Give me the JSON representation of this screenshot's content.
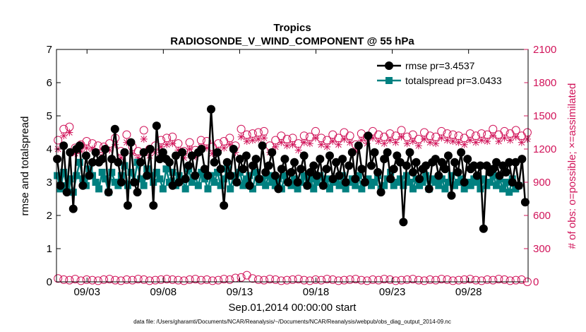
{
  "chart_data": {
    "type": "line",
    "title": "Tropics",
    "subtitle": "RADIOSONDE_V_WIND_COMPONENT @ 55 hPa",
    "xlabel": "Sep.01,2014 00:00:00 start",
    "ylabel_left": "rmse and totalspread",
    "ylabel_right": "# of obs: o=possible; ×=assimilated",
    "footer": "data file: /Users/gharamti/Documents/NCAR/Reanalysis/~/Documents/NCAR/Reanalysis/webpub/obs_diag_output_2014-09.nc",
    "xlim": [
      1,
      31.9
    ],
    "ylim_left": [
      0,
      7
    ],
    "ylim_right": [
      0,
      2100
    ],
    "x_ticks": [
      3,
      8,
      13,
      18,
      23,
      28
    ],
    "x_tick_labels": [
      "09/03",
      "09/08",
      "09/13",
      "09/18",
      "09/23",
      "09/28"
    ],
    "y_ticks_left": [
      0,
      1,
      2,
      3,
      4,
      5,
      6,
      7
    ],
    "y_ticks_right": [
      0,
      300,
      600,
      900,
      1200,
      1500,
      1800,
      2100
    ],
    "legend_position": "top-right",
    "colors": {
      "rmse": "#000000",
      "totalspread": "#008080",
      "obs": "#d1145a"
    },
    "series": [
      {
        "name": "rmse",
        "legend": "rmse pr=3.4537",
        "values": [
          3.7,
          2.9,
          4.1,
          2.7,
          3.9,
          2.2,
          4.0,
          4.1,
          2.9,
          3.8,
          3.2,
          3.6,
          3.9,
          3.6,
          3.7,
          4.0,
          2.7,
          3.7,
          4.6,
          3.6,
          3.0,
          3.9,
          2.3,
          4.2,
          3.0,
          2.7,
          3.6,
          3.9,
          3.2,
          4.0,
          2.3,
          4.7,
          3.7,
          3.9,
          3.7,
          3.6,
          2.9,
          3.8,
          3.0,
          3.9,
          3.1,
          3.5,
          3.8,
          3.2,
          3.9,
          4.0,
          3.4,
          3.2,
          5.2,
          3.6,
          3.9,
          3.4,
          2.3,
          3.6,
          3.2,
          4.0,
          3.0,
          3.7,
          3.4,
          3.8,
          2.9,
          3.5,
          3.7,
          3.1,
          4.1,
          3.3,
          3.5,
          3.9,
          3.2,
          2.8,
          3.4,
          3.7,
          3.0,
          3.3,
          3.6,
          3.0,
          3.4,
          3.8,
          2.9,
          3.3,
          3.5,
          3.2,
          3.7,
          2.9,
          3.4,
          3.8,
          3.1,
          3.6,
          3.2,
          3.7,
          3.0,
          3.5,
          3.9,
          3.1,
          4.1,
          3.4,
          3.0,
          4.4,
          3.5,
          3.9,
          3.3,
          2.7,
          3.7,
          3.9,
          3.1,
          3.4,
          3.8,
          3.6,
          1.8,
          3.5,
          3.9,
          3.3,
          3.6,
          3.1,
          3.4,
          3.5,
          2.8,
          3.6,
          3.7,
          3.2,
          3.6,
          3.4,
          3.8,
          2.6,
          3.6,
          3.3,
          3.9,
          3.0,
          3.7,
          3.4,
          3.5,
          3.2,
          3.5,
          1.6,
          3.5,
          3.3,
          3.4,
          3.6,
          3.2,
          3.5,
          3.3,
          3.6,
          3.0,
          3.6,
          2.9,
          3.7,
          2.4
        ],
        "x_start": 1.05,
        "x_step": 0.21
      },
      {
        "name": "totalspread",
        "legend": "totalspread pr=3.0433",
        "values": [
          3.2,
          2.8,
          3.3,
          2.9,
          3.1,
          2.7,
          3.2,
          3.6,
          3.1,
          2.9,
          3.4,
          3.2,
          3.0,
          2.8,
          3.3,
          3.1,
          2.7,
          3.3,
          3.0,
          2.9,
          3.2,
          3.5,
          2.9,
          3.3,
          3.0,
          3.6,
          3.1,
          2.9,
          3.4,
          3.2,
          3.0,
          3.3,
          3.1,
          2.8,
          3.4,
          3.0,
          3.3,
          2.9,
          3.2,
          3.1,
          2.8,
          3.4,
          3.0,
          3.2,
          2.9,
          3.3,
          3.1,
          2.8,
          3.2,
          3.0,
          3.3,
          2.9,
          3.1,
          3.4,
          2.8,
          3.2,
          3.0,
          3.3,
          2.9,
          3.1,
          3.2,
          2.8,
          3.3,
          3.0,
          3.1,
          2.9,
          3.2,
          3.0,
          2.9,
          3.1,
          2.8,
          3.2,
          3.0,
          2.9,
          3.1,
          2.8,
          3.0,
          3.2,
          2.9,
          3.1,
          2.8,
          3.0,
          3.2,
          2.9,
          3.1,
          2.8,
          3.0,
          3.1,
          2.9,
          3.2,
          2.8,
          3.0,
          3.1,
          2.9,
          3.2,
          2.8,
          3.0,
          3.1,
          2.9,
          3.0,
          3.2,
          2.8,
          2.9,
          3.1,
          3.3,
          2.9,
          3.0,
          3.1,
          2.9,
          3.2,
          3.0,
          2.8,
          3.1,
          2.9,
          3.0,
          3.2,
          2.8,
          3.1,
          3.0,
          2.9,
          3.1,
          2.8,
          3.0,
          3.2,
          2.9,
          3.0,
          3.1,
          2.8,
          3.0,
          2.9,
          3.1,
          3.0,
          2.8,
          3.1,
          2.9,
          3.0,
          3.2,
          2.9,
          3.1,
          2.8,
          3.0,
          2.7,
          3.1,
          2.8,
          2.9
        ],
        "x_start": 1.05,
        "x_step": 0.21
      },
      {
        "name": "obs possible (high)",
        "marker": "circle",
        "values": [
          1280,
          1380,
          1400,
          1210,
          1240,
          1270,
          1250,
          1230,
          1220,
          1250,
          1300,
          1180,
          1330,
          1220,
          1180,
          1370,
          1200,
          1230,
          1280,
          1300,
          1310,
          1250,
          1180,
          1260,
          1190,
          1280,
          1270,
          1220,
          1250,
          1270,
          1300,
          1230,
          1380,
          1330,
          1340,
          1350,
          1360,
          1230,
          1280,
          1320,
          1290,
          1300,
          1250,
          1320,
          1310,
          1360,
          1300,
          1280,
          1330,
          1300,
          1350,
          1320,
          1240,
          1340,
          1310,
          1360,
          1330,
          1310,
          1340,
          1320,
          1370,
          1310,
          1330,
          1290,
          1350,
          1320,
          1310,
          1360,
          1340,
          1330,
          1320,
          1300,
          1340,
          1320,
          1340,
          1330,
          1380,
          1330,
          1360,
          1340,
          1370,
          1320,
          1350
        ],
        "x_start": 1.1,
        "x_step": 0.375
      },
      {
        "name": "obs assimilated (high)",
        "marker": "asterisk",
        "values": [
          1200,
          1320,
          1350,
          1160,
          1180,
          1210,
          1200,
          1170,
          1170,
          1190,
          1240,
          1120,
          1260,
          1160,
          1120,
          1290,
          1140,
          1170,
          1220,
          1240,
          1250,
          1190,
          1120,
          1200,
          1130,
          1220,
          1210,
          1160,
          1190,
          1210,
          1240,
          1170,
          1310,
          1270,
          1280,
          1290,
          1300,
          1170,
          1220,
          1260,
          1230,
          1240,
          1190,
          1260,
          1250,
          1300,
          1240,
          1220,
          1270,
          1240,
          1290,
          1260,
          1180,
          1280,
          1250,
          1300,
          1270,
          1250,
          1280,
          1260,
          1310,
          1250,
          1270,
          1230,
          1290,
          1260,
          1250,
          1300,
          1280,
          1270,
          1260,
          1240,
          1280,
          1260,
          1280,
          1270,
          1320,
          1270,
          1300,
          1280,
          1310,
          1260,
          1290
        ],
        "x_start": 1.1,
        "x_step": 0.375
      },
      {
        "name": "obs possible (low)",
        "marker": "circle",
        "values": [
          30,
          20,
          15,
          25,
          10,
          20,
          15,
          10,
          20,
          25,
          15,
          10,
          20,
          15,
          25,
          20,
          10,
          15,
          20,
          25,
          20,
          15,
          10,
          20,
          25,
          15,
          20,
          10,
          15,
          25,
          20,
          35,
          40,
          60,
          30,
          20,
          15,
          25,
          20,
          10,
          15,
          20,
          25,
          15,
          10,
          20,
          15,
          25,
          20,
          10,
          15,
          20,
          25,
          15,
          10,
          20,
          15,
          25,
          20,
          10,
          15,
          20,
          25,
          15,
          10,
          20,
          15,
          25,
          20,
          10,
          15,
          20,
          25,
          15,
          10,
          20,
          15,
          25,
          20,
          10,
          15,
          20,
          0
        ],
        "x_start": 1.1,
        "x_step": 0.375
      }
    ]
  }
}
